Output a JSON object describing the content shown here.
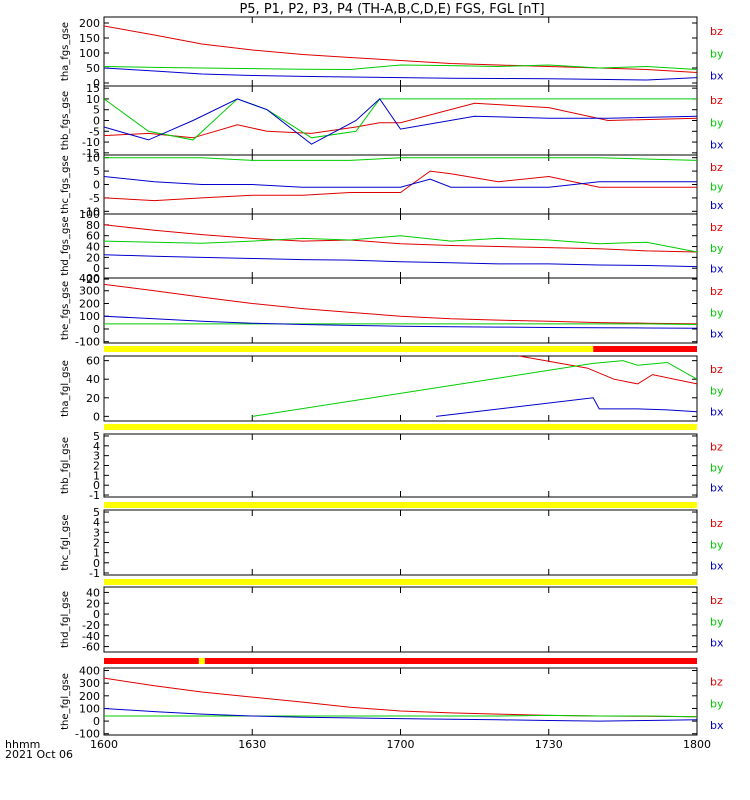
{
  "figure": {
    "title": "P5, P1, P2, P3, P4 (TH-A,B,C,D,E) FGS, FGL [nT]",
    "time_axis_label": "hhmm",
    "date_label": "2021 Oct 06",
    "colors": {
      "bz": "#dd0000",
      "by": "#00cc00",
      "bx": "#0000cc",
      "flag_yellow": "#ffff00",
      "flag_red": "#ff0000"
    }
  },
  "chart_data": [
    {
      "type": "line",
      "panel": "tha_fgs_gse",
      "ylabel": "tha_fgs_gse",
      "x_ticks": [
        "1600",
        "1630",
        "1700",
        "1730",
        "1800"
      ],
      "ylim": [
        -10,
        220
      ],
      "y_ticks": [
        "200",
        "150",
        "100",
        "50",
        "0"
      ],
      "x_hours": [
        16.0,
        16.17,
        16.33,
        16.5,
        16.67,
        16.83,
        17.0,
        17.17,
        17.33,
        17.5,
        17.67,
        17.83,
        18.0
      ],
      "series": [
        {
          "name": "bz",
          "values": [
            190,
            160,
            130,
            110,
            95,
            85,
            75,
            65,
            60,
            55,
            50,
            45,
            35
          ]
        },
        {
          "name": "by",
          "values": [
            55,
            52,
            50,
            48,
            46,
            45,
            60,
            58,
            55,
            60,
            50,
            55,
            45
          ]
        },
        {
          "name": "bx",
          "values": [
            50,
            40,
            30,
            25,
            22,
            20,
            18,
            16,
            15,
            14,
            12,
            10,
            18
          ]
        }
      ]
    },
    {
      "type": "line",
      "panel": "thb_fgs_gse",
      "ylabel": "thb_fgs_gse",
      "x_ticks": [
        "1600",
        "1630",
        "1700",
        "1730",
        "1800"
      ],
      "ylim": [
        -16,
        16
      ],
      "y_ticks": [
        "15",
        "10",
        "5",
        "0",
        "-5",
        "-10",
        "-15"
      ],
      "x_hours": [
        16.0,
        16.15,
        16.3,
        16.45,
        16.55,
        16.7,
        16.85,
        16.93,
        17.0,
        17.25,
        17.5,
        17.7,
        18.0
      ],
      "series": [
        {
          "name": "bz",
          "values": [
            -7,
            -6,
            -8,
            -2,
            -5,
            -6,
            -3,
            -1,
            -1,
            8,
            6,
            0,
            1
          ]
        },
        {
          "name": "by",
          "values": [
            10,
            -5,
            -9,
            10,
            5,
            -8,
            -5,
            10,
            10,
            10,
            10,
            10,
            10
          ]
        },
        {
          "name": "bx",
          "values": [
            -3,
            -9,
            0,
            10,
            5,
            -11,
            0,
            10,
            -4,
            2,
            1,
            1,
            2
          ]
        }
      ]
    },
    {
      "type": "line",
      "panel": "thc_fgs_gse",
      "ylabel": "thc_fgs_gse",
      "x_ticks": [
        "1600",
        "1630",
        "1700",
        "1730",
        "1800"
      ],
      "ylim": [
        -11,
        11
      ],
      "y_ticks": [
        "10",
        "5",
        "0",
        "-5",
        "-10"
      ],
      "x_hours": [
        16.0,
        16.17,
        16.33,
        16.5,
        16.67,
        16.83,
        17.0,
        17.1,
        17.17,
        17.33,
        17.5,
        17.67,
        18.0
      ],
      "series": [
        {
          "name": "bz",
          "values": [
            -5,
            -6,
            -5,
            -4,
            -4,
            -3,
            -3,
            5,
            4,
            1,
            3,
            -1,
            -1
          ]
        },
        {
          "name": "by",
          "values": [
            10,
            10,
            10,
            9,
            9,
            9,
            10,
            10,
            10,
            10,
            10,
            10,
            9
          ]
        },
        {
          "name": "bx",
          "values": [
            3,
            1,
            0,
            0,
            -1,
            -1,
            -1,
            2,
            -1,
            -1,
            -1,
            1,
            1
          ]
        }
      ]
    },
    {
      "type": "line",
      "panel": "thd_fgs_gse",
      "ylabel": "thd_fgs_gse",
      "x_ticks": [
        "1600",
        "1630",
        "1700",
        "1730",
        "1800"
      ],
      "ylim": [
        -18,
        100
      ],
      "y_ticks": [
        "100",
        "80",
        "60",
        "40",
        "20",
        "0",
        "-20"
      ],
      "x_hours": [
        16.0,
        16.17,
        16.33,
        16.5,
        16.67,
        16.83,
        17.0,
        17.17,
        17.33,
        17.5,
        17.67,
        17.83,
        18.0
      ],
      "series": [
        {
          "name": "bz",
          "values": [
            80,
            70,
            62,
            55,
            50,
            52,
            45,
            42,
            40,
            38,
            36,
            32,
            30
          ]
        },
        {
          "name": "by",
          "values": [
            50,
            48,
            46,
            50,
            55,
            52,
            60,
            50,
            55,
            52,
            45,
            48,
            30
          ]
        },
        {
          "name": "bx",
          "values": [
            25,
            22,
            20,
            18,
            16,
            15,
            12,
            10,
            8,
            8,
            6,
            5,
            3
          ]
        }
      ]
    },
    {
      "type": "line",
      "panel": "the_fgs_gse",
      "ylabel": "the_fgs_gse",
      "x_ticks": [
        "1600",
        "1630",
        "1700",
        "1730",
        "1800"
      ],
      "ylim": [
        -110,
        400
      ],
      "y_ticks": [
        "400",
        "300",
        "200",
        "100",
        "0",
        "-100"
      ],
      "x_hours": [
        16.0,
        16.17,
        16.33,
        16.5,
        16.67,
        16.83,
        17.0,
        17.17,
        17.33,
        17.5,
        17.67,
        17.83,
        18.0
      ],
      "series": [
        {
          "name": "bz",
          "values": [
            350,
            300,
            250,
            200,
            160,
            130,
            100,
            80,
            70,
            60,
            50,
            45,
            40
          ]
        },
        {
          "name": "by",
          "values": [
            40,
            40,
            40,
            40,
            40,
            40,
            40,
            40,
            40,
            40,
            40,
            40,
            35
          ]
        },
        {
          "name": "bx",
          "values": [
            100,
            80,
            60,
            45,
            35,
            28,
            22,
            18,
            15,
            12,
            10,
            8,
            5
          ]
        }
      ]
    },
    {
      "type": "line",
      "panel": "tha_fgl_gse",
      "ylabel": "tha_fgl_gse",
      "x_ticks": [
        "1600",
        "1630",
        "1700",
        "1730",
        "1800"
      ],
      "ylim": [
        -5,
        65
      ],
      "y_ticks": [
        "60",
        "40",
        "20",
        "0"
      ],
      "series": [
        {
          "name": "bz",
          "x_hours": [
            17.4,
            17.63,
            17.72,
            17.8,
            17.85,
            18.0
          ],
          "values": [
            65,
            52,
            40,
            35,
            45,
            35
          ]
        },
        {
          "name": "by",
          "x_hours": [
            16.5,
            17.65,
            17.75,
            17.8,
            17.9,
            18.0
          ],
          "values": [
            0,
            57,
            60,
            55,
            58,
            40
          ]
        },
        {
          "name": "bx",
          "x_hours": [
            17.12,
            17.65,
            17.67,
            17.8,
            17.9,
            18.0
          ],
          "values": [
            0,
            20,
            8,
            8,
            7,
            5
          ]
        }
      ]
    },
    {
      "type": "line",
      "panel": "thb_fgl_gse",
      "ylabel": "thb_fgl_gse",
      "x_ticks": [
        "1600",
        "1630",
        "1700",
        "1730",
        "1800"
      ],
      "ylim": [
        -1.2,
        5.2
      ],
      "y_ticks": [
        "5",
        "4",
        "3",
        "2",
        "1",
        "0",
        "-1"
      ],
      "series": []
    },
    {
      "type": "line",
      "panel": "thc_fgl_gse",
      "ylabel": "thc_fgl_gse",
      "x_ticks": [
        "1600",
        "1630",
        "1700",
        "1730",
        "1800"
      ],
      "ylim": [
        -1.2,
        5.2
      ],
      "y_ticks": [
        "5",
        "4",
        "3",
        "2",
        "1",
        "0",
        "-1"
      ],
      "series": []
    },
    {
      "type": "line",
      "panel": "thd_fgl_gse",
      "ylabel": "thd_fgl_gse",
      "x_ticks": [
        "1600",
        "1630",
        "1700",
        "1730",
        "1800"
      ],
      "ylim": [
        -70,
        50
      ],
      "y_ticks": [
        "40",
        "20",
        "0",
        "-20",
        "-40",
        "-60"
      ],
      "series": []
    },
    {
      "type": "line",
      "panel": "the_fgl_gse",
      "ylabel": "the_fgl_gse",
      "x_ticks": [
        "1600",
        "1630",
        "1700",
        "1730",
        "1800"
      ],
      "ylim": [
        -110,
        420
      ],
      "y_ticks": [
        "400",
        "300",
        "200",
        "100",
        "0",
        "-100"
      ],
      "x_hours": [
        16.0,
        16.17,
        16.33,
        16.5,
        16.67,
        16.83,
        17.0,
        17.17,
        17.33,
        17.5,
        17.67,
        17.83,
        18.0
      ],
      "series": [
        {
          "name": "bz",
          "values": [
            340,
            280,
            230,
            190,
            150,
            110,
            80,
            65,
            55,
            45,
            40,
            38,
            35
          ]
        },
        {
          "name": "by",
          "values": [
            40,
            40,
            40,
            40,
            40,
            40,
            40,
            40,
            40,
            45,
            40,
            40,
            35
          ]
        },
        {
          "name": "bx",
          "values": [
            100,
            75,
            55,
            40,
            30,
            25,
            20,
            15,
            10,
            5,
            0,
            5,
            10
          ]
        }
      ]
    }
  ],
  "flag_bars": [
    {
      "after_panel": "the_fgs_gse",
      "segments": [
        {
          "from_hour": 16.0,
          "to_hour": 17.65,
          "color": "yellow"
        },
        {
          "from_hour": 17.65,
          "to_hour": 18.0,
          "color": "red"
        }
      ]
    },
    {
      "after_panel": "tha_fgl_gse",
      "segments": [
        {
          "from_hour": 16.0,
          "to_hour": 18.0,
          "color": "yellow"
        }
      ]
    },
    {
      "after_panel": "thb_fgl_gse",
      "segments": [
        {
          "from_hour": 16.0,
          "to_hour": 18.0,
          "color": "yellow"
        }
      ]
    },
    {
      "after_panel": "thc_fgl_gse",
      "segments": [
        {
          "from_hour": 16.0,
          "to_hour": 18.0,
          "color": "yellow"
        }
      ]
    },
    {
      "after_panel": "thd_fgl_gse",
      "segments": [
        {
          "from_hour": 16.0,
          "to_hour": 16.32,
          "color": "red"
        },
        {
          "from_hour": 16.32,
          "to_hour": 16.34,
          "color": "yellow"
        },
        {
          "from_hour": 16.34,
          "to_hour": 18.0,
          "color": "red"
        }
      ]
    }
  ]
}
